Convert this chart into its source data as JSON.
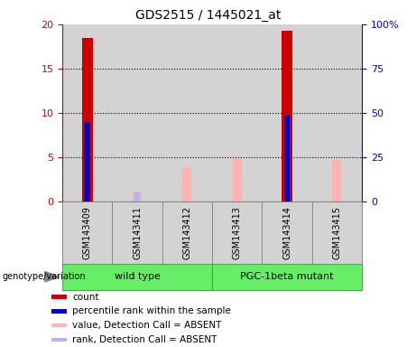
{
  "title": "GDS2515 / 1445021_at",
  "samples": [
    "GSM143409",
    "GSM143411",
    "GSM143412",
    "GSM143413",
    "GSM143414",
    "GSM143415"
  ],
  "red_bars": [
    18.5,
    0,
    0,
    0,
    19.3,
    0
  ],
  "blue_bars_pct": [
    45.0,
    0,
    0,
    0,
    48.5,
    0
  ],
  "pink_bars": [
    0,
    1.0,
    3.9,
    4.9,
    0,
    4.7
  ],
  "lightblue_bars_pct": [
    0,
    5.5,
    0,
    0,
    0,
    0
  ],
  "ylim_left": [
    0,
    20
  ],
  "ylim_right": [
    0,
    100
  ],
  "yticks_left": [
    0,
    5,
    10,
    15,
    20
  ],
  "yticks_right": [
    0,
    25,
    50,
    75,
    100
  ],
  "ytick_labels_right": [
    "0",
    "25",
    "50",
    "75",
    "100%"
  ],
  "group1_label": "wild type",
  "group2_label": "PGC-1beta mutant",
  "genotype_label": "genotype/variation",
  "legend_labels": [
    "count",
    "percentile rank within the sample",
    "value, Detection Call = ABSENT",
    "rank, Detection Call = ABSENT"
  ],
  "legend_colors": [
    "#cc0000",
    "#0000cc",
    "#ffb3b3",
    "#b3b3ff"
  ],
  "red_color": "#cc0000",
  "blue_color": "#0000cc",
  "pink_color": "#ffb3b3",
  "lightblue_color": "#b3b3ff",
  "bg_plot": "#d3d3d3",
  "bg_sample_row": "#d3d3d3",
  "group_row_color": "#66ee66",
  "title_fontsize": 10,
  "axis_fontsize": 8,
  "legend_fontsize": 8
}
